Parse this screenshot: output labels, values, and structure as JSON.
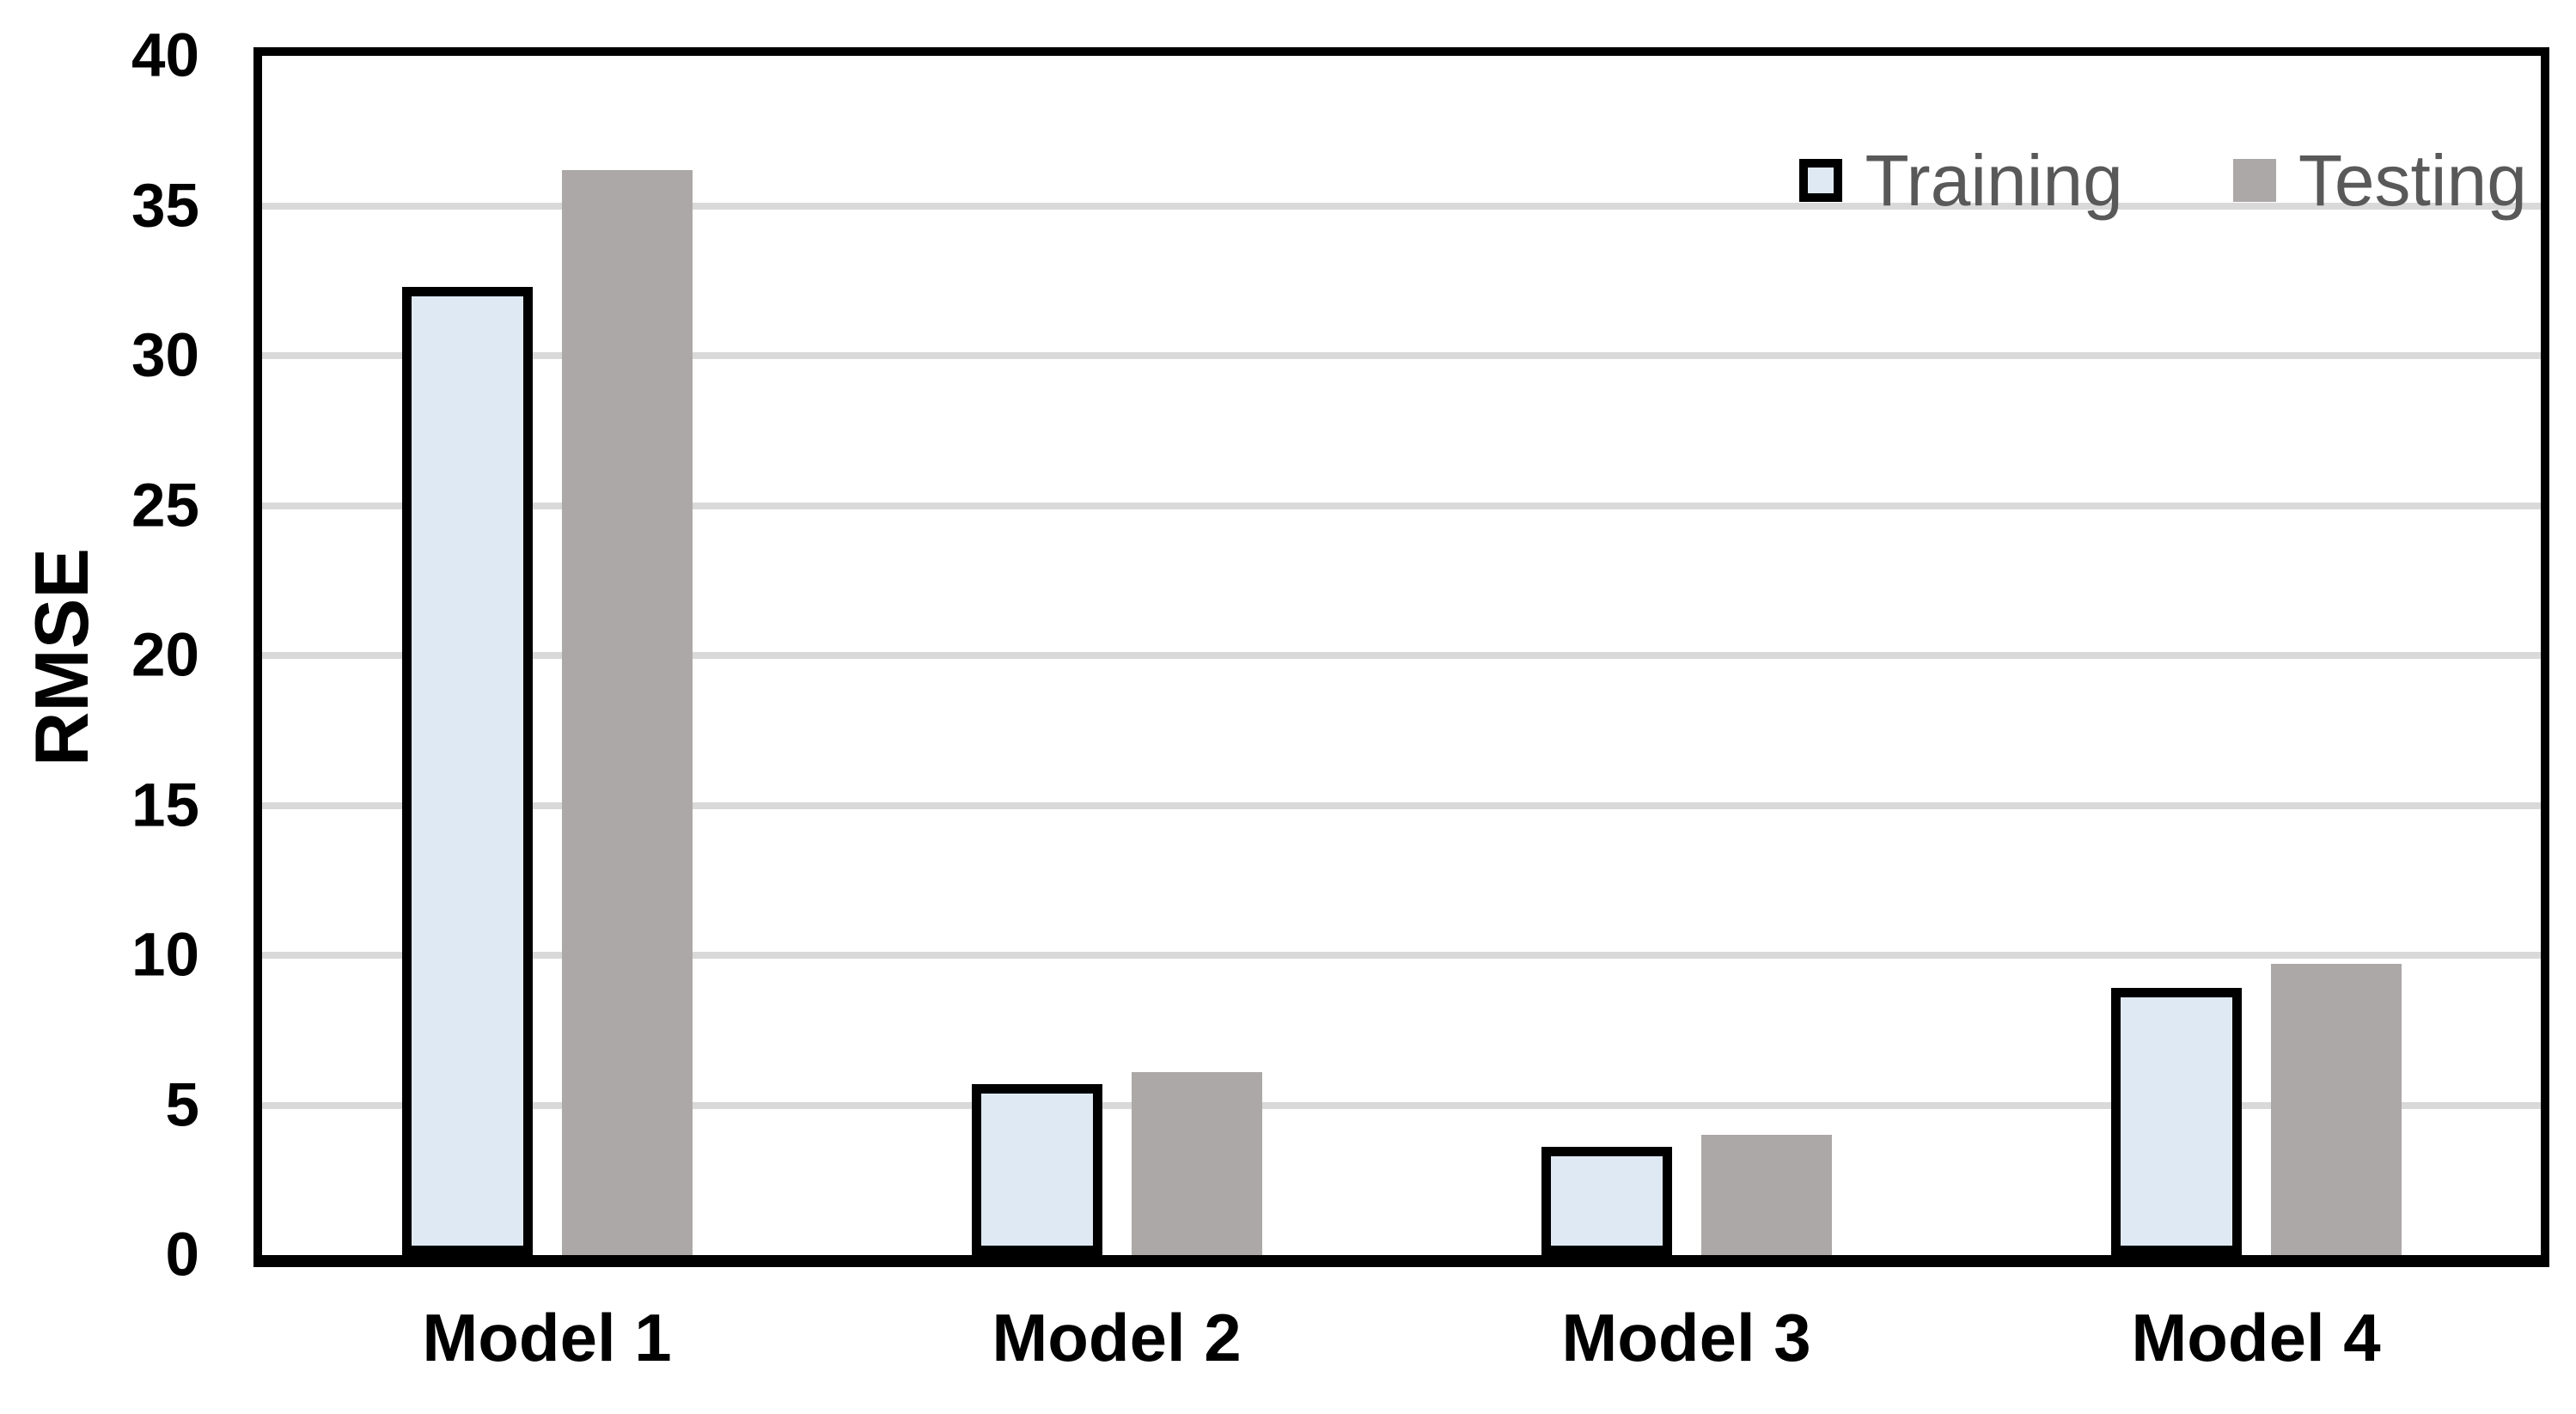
{
  "chart_data": {
    "type": "bar",
    "title": "",
    "ylabel": "RMSE",
    "xlabel": "",
    "categories": [
      "Model 1",
      "Model 2",
      "Model 3",
      "Model 4"
    ],
    "series": [
      {
        "name": "Training",
        "values": [
          32.3,
          5.7,
          3.6,
          8.9
        ],
        "fill": "#dfe9f4",
        "border_color": "#000000",
        "border_px": 11
      },
      {
        "name": "Testing",
        "values": [
          36.2,
          6.1,
          4.0,
          9.7
        ],
        "fill": "#aca8a7",
        "border_color": null,
        "border_px": 0
      }
    ],
    "ylim": [
      0,
      40
    ],
    "yticks": [
      0,
      5,
      10,
      15,
      20,
      25,
      30,
      35,
      40
    ],
    "grid": "horizontal",
    "gridline_color": "#d9d9d9",
    "axis_color": "#000000",
    "legend_position": "top-right-inside",
    "legend_text_color": "#595959",
    "background_color": "#ffffff"
  }
}
